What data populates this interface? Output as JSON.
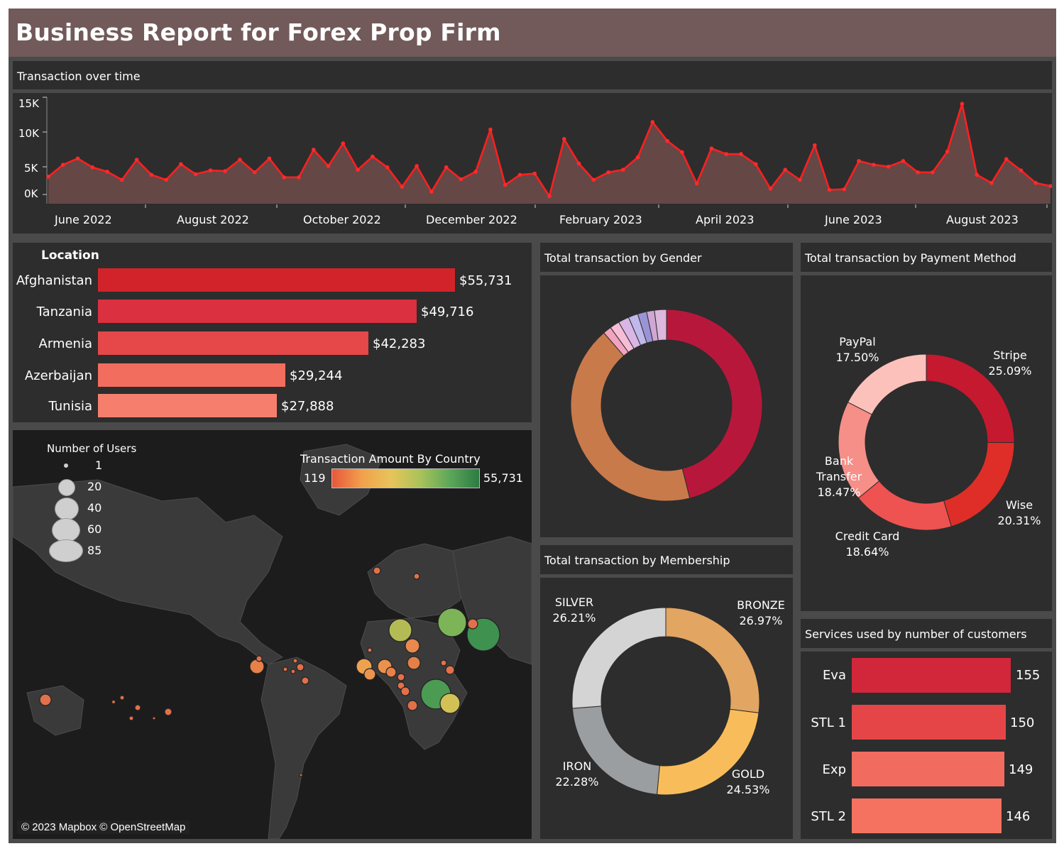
{
  "header": {
    "title": "Business Report for Forex Prop Firm"
  },
  "time_chart": {
    "title": "Transaction over time",
    "y_ticks": [
      "15K",
      "10K",
      "5K",
      "0K"
    ],
    "x_labels": [
      "June 2022",
      "August 2022",
      "October 2022",
      "December 2022",
      "February 2023",
      "April 2023",
      "June 2023",
      "August 2023"
    ],
    "colors": {
      "line": "#ff1f1f",
      "area": "#6b4a49"
    }
  },
  "location": {
    "title": "Location",
    "items": [
      {
        "label": "Afghanistan",
        "value": 55731,
        "text": "$55,731",
        "color": "#d2232a"
      },
      {
        "label": "Tanzania",
        "value": 49716,
        "text": "$49,716",
        "color": "#da3040"
      },
      {
        "label": "Armenia",
        "value": 42283,
        "text": "$42,283",
        "color": "#e64749"
      },
      {
        "label": "Azerbaijan",
        "value": 29244,
        "text": "$29,244",
        "color": "#f36d5e"
      },
      {
        "label": "Tunisia",
        "value": 27888,
        "text": "$27,888",
        "color": "#f57f6c"
      }
    ]
  },
  "map": {
    "size_legend": {
      "title": "Number of Users",
      "items": [
        "1",
        "20",
        "40",
        "60",
        "85"
      ]
    },
    "color_legend": {
      "title": "Transaction Amount By Country",
      "min": "119",
      "max": "55,731"
    },
    "attribution": "© 2023 Mapbox © OpenStreetMap"
  },
  "gender": {
    "title": "Total transaction by Gender"
  },
  "membership": {
    "title": "Total transaction by Membership",
    "items": [
      {
        "name": "BRONZE",
        "pct": "26.97%",
        "value": 26.97,
        "color": "#e2a562"
      },
      {
        "name": "GOLD",
        "pct": "24.53%",
        "value": 24.53,
        "color": "#f8bd5a"
      },
      {
        "name": "IRON",
        "pct": "22.28%",
        "value": 22.28,
        "color": "#9b9ea0"
      },
      {
        "name": "SILVER",
        "pct": "26.21%",
        "value": 26.21,
        "color": "#d4d4d4"
      }
    ]
  },
  "payment": {
    "title": "Total transaction by Payment Method",
    "items": [
      {
        "name": "Stripe",
        "pct": "25.09%",
        "value": 25.09,
        "color": "#c4192f"
      },
      {
        "name": "Wise",
        "pct": "20.31%",
        "value": 20.31,
        "color": "#df2e28"
      },
      {
        "name": "Credit Card",
        "pct": "18.64%",
        "value": 18.64,
        "color": "#ee5351"
      },
      {
        "name": "Bank Transfer",
        "pct": "18.47%",
        "value": 18.47,
        "color": "#f58f88"
      },
      {
        "name": "PayPal",
        "pct": "17.50%",
        "value": 17.5,
        "color": "#fcc1bb"
      }
    ]
  },
  "services": {
    "title": "Services used by number of customers",
    "items": [
      {
        "label": "Eva",
        "value": 155,
        "text": "155",
        "color": "#d2263a"
      },
      {
        "label": "STL 1",
        "value": 150,
        "text": "150",
        "color": "#e64548"
      },
      {
        "label": "Exp",
        "value": 149,
        "text": "149",
        "color": "#f26b5f"
      },
      {
        "label": "STL 2",
        "value": 146,
        "text": "146",
        "color": "#f4725f"
      }
    ]
  }
}
